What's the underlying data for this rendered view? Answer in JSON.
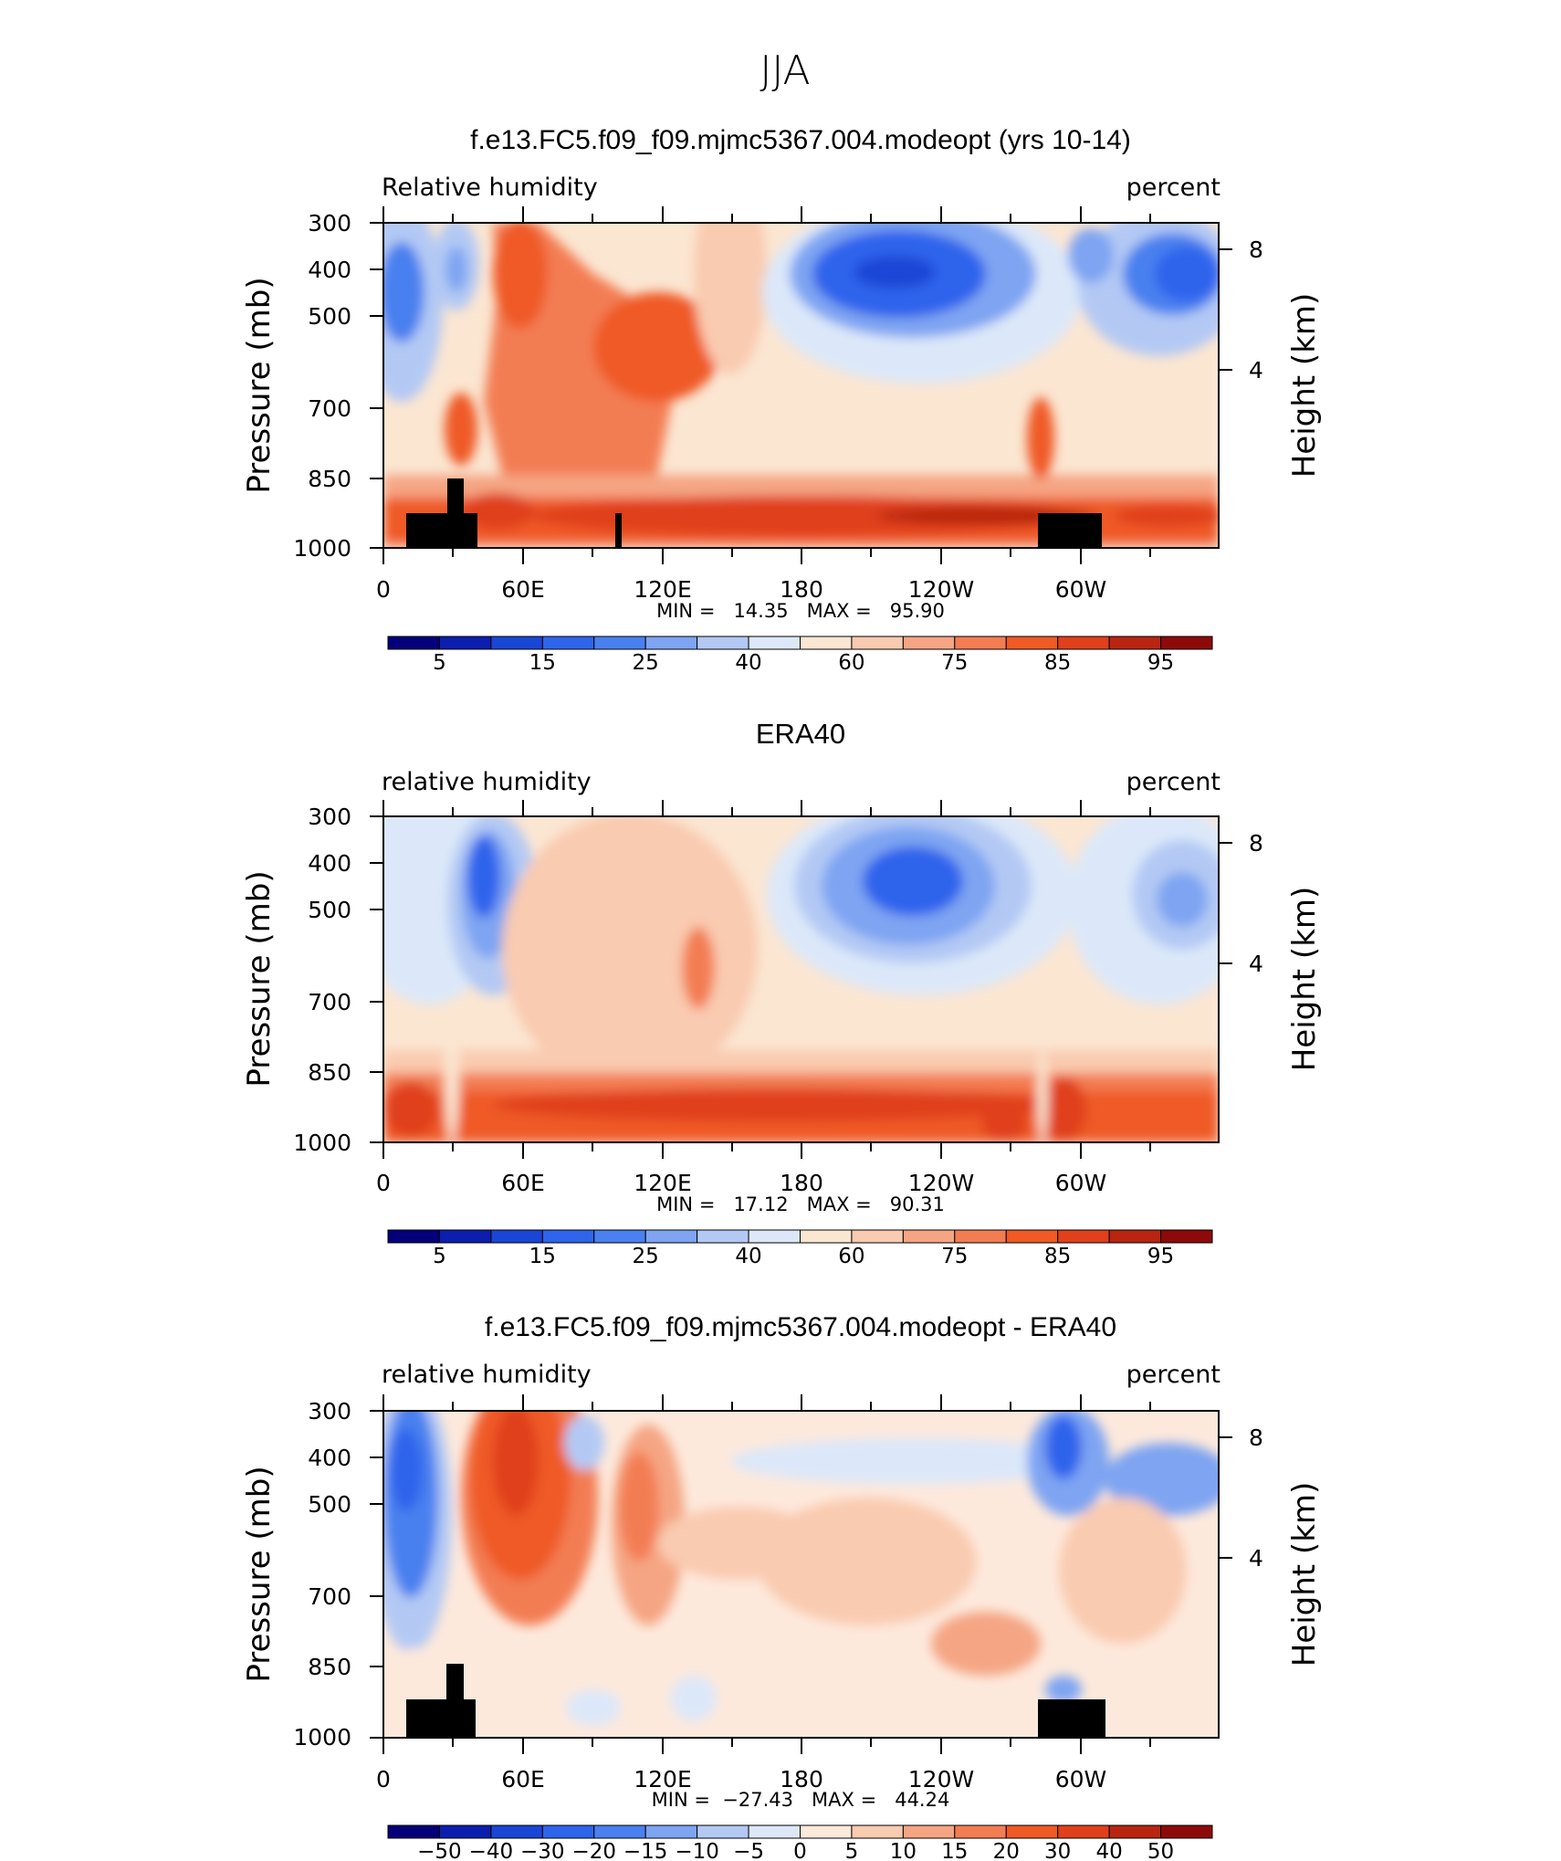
{
  "figure": {
    "season": "JJA"
  },
  "colorbar_labels": {
    "absolute": [
      "5",
      "15",
      "25",
      "40",
      "60",
      "75",
      "85",
      "95"
    ],
    "difference": [
      "−50",
      "−40",
      "−30",
      "−20",
      "−15",
      "−10",
      "−5",
      "0",
      "5",
      "10",
      "15",
      "20",
      "30",
      "40",
      "50"
    ]
  },
  "colorbar_colors": {
    "absolute": [
      "#05007a",
      "#0b1eae",
      "#1a46d6",
      "#2f64ec",
      "#4a80ef",
      "#7ea4f2",
      "#b3c9f4",
      "#dce8f9",
      "#fbe6d2",
      "#f9cbb0",
      "#f5a583",
      "#f37d52",
      "#ef5a25",
      "#e0401b",
      "#b92511",
      "#8e0a0a"
    ],
    "difference": [
      "#05007a",
      "#0b1eae",
      "#1a46d6",
      "#2f64ec",
      "#4a80ef",
      "#7ea4f2",
      "#b3c9f4",
      "#dce8f9",
      "#fde9dc",
      "#f9cbb0",
      "#f5a583",
      "#f37d52",
      "#ef5a25",
      "#e0401b",
      "#b92511",
      "#8e0a0a"
    ]
  },
  "chart_data": [
    {
      "type": "heatmap",
      "title": "f.e13.FC5.f09_f09.mjmc5367.004.modeopt (yrs 10-14)",
      "left_label": "Relative humidity",
      "right_label": "percent",
      "ylabel": "Pressure (mb)",
      "ylabel_right": "Height (km)",
      "x_tick_labels": [
        "0",
        "60E",
        "120E",
        "180",
        "120W",
        "60W"
      ],
      "y_tick_labels": [
        "300",
        "400",
        "500",
        "700",
        "850",
        "1000"
      ],
      "right_tick_labels": [
        "8",
        "4"
      ],
      "ylim": [
        1000,
        300
      ],
      "y_scale": "log",
      "stats_text": "MIN =   14.35   MAX =   95.90",
      "min": 14.35,
      "max": 95.9,
      "contour_levels": [
        5,
        10,
        15,
        20,
        25,
        30,
        40,
        50,
        60,
        65,
        75,
        80,
        85,
        90,
        95
      ],
      "topography": "black blocks near 1000 mb around 10E-40E, 100E and 75W-50W"
    },
    {
      "type": "heatmap",
      "title": "ERA40",
      "left_label": "relative humidity",
      "right_label": "percent",
      "ylabel": "Pressure (mb)",
      "ylabel_right": "Height (km)",
      "x_tick_labels": [
        "0",
        "60E",
        "120E",
        "180",
        "120W",
        "60W"
      ],
      "y_tick_labels": [
        "300",
        "400",
        "500",
        "700",
        "850",
        "1000"
      ],
      "right_tick_labels": [
        "8",
        "4"
      ],
      "ylim": [
        1000,
        300
      ],
      "y_scale": "log",
      "stats_text": "MIN =   17.12   MAX =   90.31",
      "min": 17.12,
      "max": 90.31,
      "contour_levels": [
        5,
        10,
        15,
        20,
        25,
        30,
        40,
        50,
        60,
        65,
        75,
        80,
        85,
        90,
        95
      ]
    },
    {
      "type": "heatmap",
      "title": "f.e13.FC5.f09_f09.mjmc5367.004.modeopt - ERA40",
      "left_label": "relative humidity",
      "right_label": "percent",
      "ylabel": "Pressure (mb)",
      "ylabel_right": "Height (km)",
      "x_tick_labels": [
        "0",
        "60E",
        "120E",
        "180",
        "120W",
        "60W"
      ],
      "y_tick_labels": [
        "300",
        "400",
        "500",
        "700",
        "850",
        "1000"
      ],
      "right_tick_labels": [
        "8",
        "4"
      ],
      "ylim": [
        1000,
        300
      ],
      "y_scale": "log",
      "stats_text": "MIN =  −27.43   MAX =   44.24",
      "min": -27.43,
      "max": 44.24,
      "contour_levels": [
        -50,
        -40,
        -30,
        -20,
        -15,
        -10,
        -5,
        0,
        5,
        10,
        15,
        20,
        30,
        40,
        50
      ],
      "topography": "black blocks near 1000 mb around 10E-40E and 75W-48W"
    }
  ]
}
